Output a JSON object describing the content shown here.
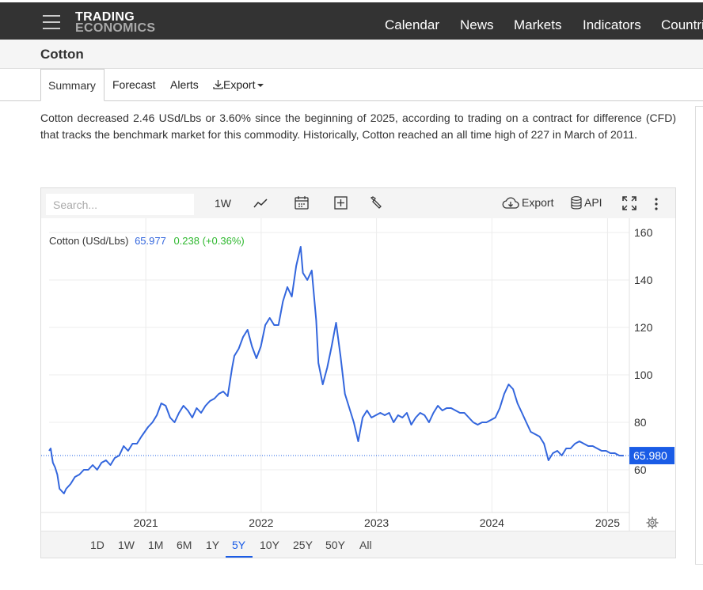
{
  "header": {
    "logo_line1": "TRADING",
    "logo_line2": "ECONOMICS",
    "nav": [
      "Calendar",
      "News",
      "Markets",
      "Indicators",
      "Countri"
    ]
  },
  "page": {
    "title": "Cotton",
    "tabs": [
      "Summary",
      "Forecast",
      "Alerts",
      "Export"
    ],
    "active_tab": "Summary",
    "description": "Cotton decreased 2.46 USd/Lbs or 3.60% since the beginning of 2025, according to trading on a contract for difference (CFD) that tracks the benchmark market for this commodity. Historically, Cotton reached an all time high of 227 in March of 2011."
  },
  "toolbar": {
    "search_placeholder": "Search...",
    "interval": "1W",
    "export_label": "Export",
    "api_label": "API"
  },
  "legend": {
    "name": "Cotton (USd/Lbs)",
    "value": "65.977",
    "change": "0.238 (+0.36%)"
  },
  "ranges": [
    "1D",
    "1W",
    "1M",
    "6M",
    "1Y",
    "5Y",
    "10Y",
    "25Y",
    "50Y",
    "All"
  ],
  "active_range": "5Y",
  "colors": {
    "line": "#3366dd",
    "last_badge": "#1a5ce6",
    "positive": "#2eb82e"
  },
  "chart_data": {
    "type": "line",
    "title": "",
    "xlabel": "",
    "ylabel": "",
    "x_ticks": [
      "2021",
      "2022",
      "2023",
      "2024",
      "2025"
    ],
    "y_ticks": [
      60,
      80,
      100,
      120,
      140,
      160
    ],
    "ylim": [
      42,
      166
    ],
    "last_value_label": "65.980",
    "last_value": 65.98,
    "grid": true,
    "series": [
      {
        "name": "Cotton (USd/Lbs)",
        "points": [
          [
            "2020-03-01",
            68
          ],
          [
            "2020-03-06",
            69
          ],
          [
            "2020-03-13",
            63
          ],
          [
            "2020-03-20",
            61
          ],
          [
            "2020-03-27",
            58
          ],
          [
            "2020-04-03",
            52
          ],
          [
            "2020-04-10",
            51
          ],
          [
            "2020-04-17",
            50
          ],
          [
            "2020-04-24",
            52
          ],
          [
            "2020-05-08",
            54
          ],
          [
            "2020-05-22",
            57
          ],
          [
            "2020-06-05",
            58
          ],
          [
            "2020-06-19",
            60
          ],
          [
            "2020-07-03",
            60
          ],
          [
            "2020-07-17",
            62
          ],
          [
            "2020-07-31",
            60
          ],
          [
            "2020-08-14",
            63
          ],
          [
            "2020-08-28",
            64
          ],
          [
            "2020-09-11",
            62
          ],
          [
            "2020-09-25",
            65
          ],
          [
            "2020-10-09",
            66
          ],
          [
            "2020-10-23",
            70
          ],
          [
            "2020-11-06",
            68
          ],
          [
            "2020-11-20",
            71
          ],
          [
            "2020-12-04",
            71
          ],
          [
            "2020-12-18",
            74
          ],
          [
            "2021-01-08",
            78
          ],
          [
            "2021-01-22",
            80
          ],
          [
            "2021-02-05",
            83
          ],
          [
            "2021-02-19",
            88
          ],
          [
            "2021-03-05",
            87
          ],
          [
            "2021-03-19",
            82
          ],
          [
            "2021-04-02",
            80
          ],
          [
            "2021-04-16",
            84
          ],
          [
            "2021-04-30",
            87
          ],
          [
            "2021-05-14",
            85
          ],
          [
            "2021-05-28",
            82
          ],
          [
            "2021-06-11",
            86
          ],
          [
            "2021-06-25",
            84
          ],
          [
            "2021-07-09",
            87
          ],
          [
            "2021-07-23",
            89
          ],
          [
            "2021-08-06",
            90
          ],
          [
            "2021-08-20",
            92
          ],
          [
            "2021-09-03",
            93
          ],
          [
            "2021-09-17",
            91
          ],
          [
            "2021-10-01",
            103
          ],
          [
            "2021-10-08",
            108
          ],
          [
            "2021-10-22",
            111
          ],
          [
            "2021-11-05",
            116
          ],
          [
            "2021-11-19",
            119
          ],
          [
            "2021-12-03",
            112
          ],
          [
            "2021-12-17",
            107
          ],
          [
            "2021-12-31",
            112
          ],
          [
            "2022-01-14",
            121
          ],
          [
            "2022-01-28",
            124
          ],
          [
            "2022-02-11",
            121
          ],
          [
            "2022-02-25",
            121
          ],
          [
            "2022-03-11",
            131
          ],
          [
            "2022-03-25",
            137
          ],
          [
            "2022-04-08",
            133
          ],
          [
            "2022-04-22",
            146
          ],
          [
            "2022-05-06",
            154
          ],
          [
            "2022-05-13",
            143
          ],
          [
            "2022-05-27",
            140
          ],
          [
            "2022-06-10",
            144
          ],
          [
            "2022-06-24",
            123
          ],
          [
            "2022-07-01",
            105
          ],
          [
            "2022-07-15",
            96
          ],
          [
            "2022-07-29",
            103
          ],
          [
            "2022-08-12",
            112
          ],
          [
            "2022-08-26",
            122
          ],
          [
            "2022-09-09",
            108
          ],
          [
            "2022-09-23",
            92
          ],
          [
            "2022-10-07",
            86
          ],
          [
            "2022-10-21",
            80
          ],
          [
            "2022-11-04",
            72
          ],
          [
            "2022-11-18",
            82
          ],
          [
            "2022-12-02",
            85
          ],
          [
            "2022-12-16",
            82
          ],
          [
            "2022-12-30",
            83
          ],
          [
            "2023-01-13",
            84
          ],
          [
            "2023-01-27",
            83
          ],
          [
            "2023-02-10",
            84
          ],
          [
            "2023-02-24",
            80
          ],
          [
            "2023-03-10",
            83
          ],
          [
            "2023-03-24",
            82
          ],
          [
            "2023-04-07",
            84
          ],
          [
            "2023-04-21",
            79
          ],
          [
            "2023-05-05",
            82
          ],
          [
            "2023-05-19",
            84
          ],
          [
            "2023-06-02",
            83
          ],
          [
            "2023-06-16",
            80
          ],
          [
            "2023-06-30",
            84
          ],
          [
            "2023-07-14",
            87
          ],
          [
            "2023-07-28",
            85
          ],
          [
            "2023-08-11",
            86
          ],
          [
            "2023-08-25",
            86
          ],
          [
            "2023-09-08",
            85
          ],
          [
            "2023-09-22",
            84
          ],
          [
            "2023-10-06",
            84
          ],
          [
            "2023-10-20",
            82
          ],
          [
            "2023-11-03",
            80
          ],
          [
            "2023-11-17",
            79
          ],
          [
            "2023-12-01",
            80
          ],
          [
            "2023-12-15",
            80
          ],
          [
            "2023-12-29",
            81
          ],
          [
            "2024-01-12",
            82
          ],
          [
            "2024-01-26",
            86
          ],
          [
            "2024-02-09",
            92
          ],
          [
            "2024-02-23",
            96
          ],
          [
            "2024-03-08",
            94
          ],
          [
            "2024-03-22",
            88
          ],
          [
            "2024-04-05",
            84
          ],
          [
            "2024-04-19",
            80
          ],
          [
            "2024-05-03",
            76
          ],
          [
            "2024-05-17",
            75
          ],
          [
            "2024-05-31",
            74
          ],
          [
            "2024-06-14",
            71
          ],
          [
            "2024-06-28",
            64
          ],
          [
            "2024-07-12",
            67
          ],
          [
            "2024-07-26",
            68
          ],
          [
            "2024-08-09",
            66
          ],
          [
            "2024-08-23",
            69
          ],
          [
            "2024-09-06",
            69
          ],
          [
            "2024-09-20",
            71
          ],
          [
            "2024-10-04",
            72
          ],
          [
            "2024-10-18",
            71
          ],
          [
            "2024-11-01",
            70
          ],
          [
            "2024-11-15",
            70
          ],
          [
            "2024-11-29",
            69
          ],
          [
            "2024-12-13",
            68
          ],
          [
            "2024-12-27",
            68
          ],
          [
            "2025-01-10",
            67
          ],
          [
            "2025-01-24",
            67
          ],
          [
            "2025-02-07",
            66
          ],
          [
            "2025-02-21",
            65.98
          ]
        ]
      }
    ]
  }
}
